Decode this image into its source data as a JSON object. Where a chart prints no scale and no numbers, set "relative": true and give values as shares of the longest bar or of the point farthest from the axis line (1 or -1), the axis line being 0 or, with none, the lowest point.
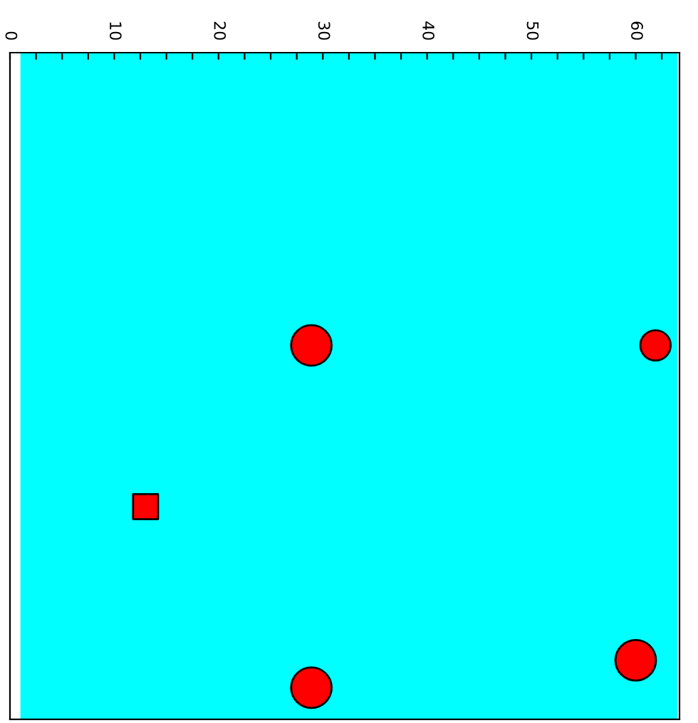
{
  "chart_data": {
    "type": "scatter",
    "relative": true,
    "xlim": [
      0,
      64.2
    ],
    "xticks": [
      0,
      {
        "value": 2.5,
        "label": null
      },
      {
        "value": 5,
        "label": null
      },
      {
        "value": 7.5,
        "label": null
      },
      10,
      {
        "value": 12.5,
        "label": null
      },
      {
        "value": 15,
        "label": null
      },
      {
        "value": 17.5,
        "label": null
      },
      20,
      {
        "value": 22.5,
        "label": null
      },
      {
        "value": 25,
        "label": null
      },
      {
        "value": 27.5,
        "label": null
      },
      30,
      {
        "value": 32.5,
        "label": null
      },
      {
        "value": 35,
        "label": null
      },
      {
        "value": 37.5,
        "label": null
      },
      40,
      {
        "value": 42.5,
        "label": null
      },
      {
        "value": 45,
        "label": null
      },
      {
        "value": 47.5,
        "label": null
      },
      50,
      {
        "value": 52.5,
        "label": null
      },
      {
        "value": 55,
        "label": null
      },
      {
        "value": 57.5,
        "label": null
      },
      60,
      {
        "value": 62.5,
        "label": null
      }
    ],
    "bands": [
      {
        "axis": "x",
        "from": 1,
        "to": 64,
        "color": "#00ffff"
      }
    ],
    "series": [
      {
        "type": "bubble",
        "color": "#ff0000",
        "marker": "circle",
        "x": [
          28.9,
          61.9,
          60.0,
          28.9
        ],
        "values": [
          -0.461,
          -0.461,
          -0.957,
          -1
        ],
        "sizes": [
          1,
          0.56,
          1,
          1
        ]
      },
      {
        "color": "#ff0000",
        "marker": "square",
        "x": [
          13.0
        ],
        "values": [
          -0.715
        ]
      }
    ]
  }
}
